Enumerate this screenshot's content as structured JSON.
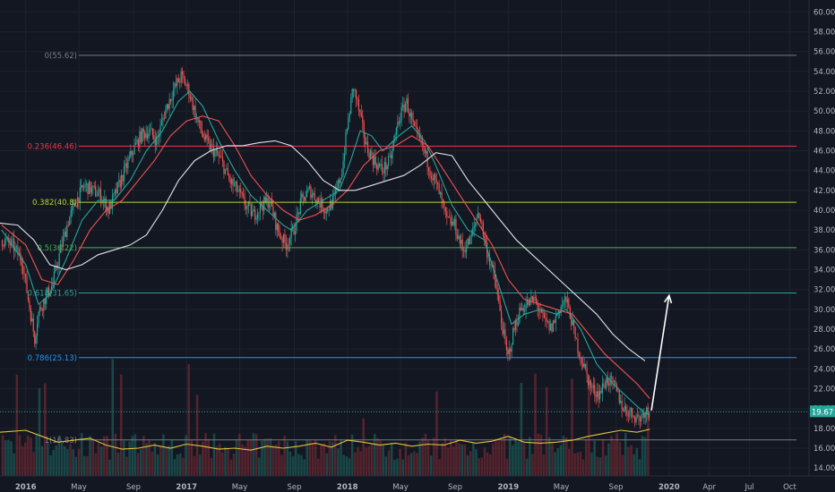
{
  "chart_data": {
    "type": "line",
    "title": "",
    "xlabel": "",
    "ylabel": "",
    "ylim": [
      13.2,
      61.2
    ],
    "xlim": [
      2015.84,
      2020.87
    ],
    "x_ticks": [
      {
        "label": "2016",
        "t": 2016.0,
        "major": true
      },
      {
        "label": "May",
        "t": 2016.33,
        "major": false
      },
      {
        "label": "Sep",
        "t": 2016.67,
        "major": false
      },
      {
        "label": "2017",
        "t": 2017.0,
        "major": true
      },
      {
        "label": "May",
        "t": 2017.33,
        "major": false
      },
      {
        "label": "Sep",
        "t": 2017.67,
        "major": false
      },
      {
        "label": "2018",
        "t": 2018.0,
        "major": true
      },
      {
        "label": "May",
        "t": 2018.33,
        "major": false
      },
      {
        "label": "Sep",
        "t": 2018.67,
        "major": false
      },
      {
        "label": "2019",
        "t": 2019.0,
        "major": true
      },
      {
        "label": "May",
        "t": 2019.33,
        "major": false
      },
      {
        "label": "Sep",
        "t": 2019.67,
        "major": false
      },
      {
        "label": "2020",
        "t": 2020.0,
        "major": true
      },
      {
        "label": "Apr",
        "t": 2020.25,
        "major": false
      },
      {
        "label": "Jul",
        "t": 2020.5,
        "major": false
      },
      {
        "label": "Oct",
        "t": 2020.75,
        "major": false
      }
    ],
    "y_ticks": [
      "14.00",
      "16.00",
      "18.00",
      "20.00",
      "22.00",
      "24.00",
      "26.00",
      "28.00",
      "30.00",
      "32.00",
      "34.00",
      "36.00",
      "38.00",
      "40.00",
      "42.00",
      "44.00",
      "46.00",
      "48.00",
      "50.00",
      "52.00",
      "54.00",
      "56.00",
      "58.00",
      "60.00"
    ],
    "current_price": "19.67",
    "fib_levels": [
      {
        "label": "0(55.62)",
        "value": 55.62,
        "color": "#787b86"
      },
      {
        "label": "0.236(46.46)",
        "value": 46.46,
        "color": "#f23645"
      },
      {
        "label": "0.382(40.8)",
        "value": 40.8,
        "color": "#b5d334"
      },
      {
        "label": "0.5(36.22)",
        "value": 36.22,
        "color": "#4caf50"
      },
      {
        "label": "0.618(31.65)",
        "value": 31.65,
        "color": "#26a69a"
      },
      {
        "label": "0.786(25.13)",
        "value": 25.13,
        "color": "#2196f3"
      },
      {
        "label": "1(16.83)",
        "value": 16.83,
        "color": "#787b86"
      }
    ],
    "price_path": [
      [
        2015.85,
        37.0
      ],
      [
        2015.92,
        36.5
      ],
      [
        2015.98,
        35.0
      ],
      [
        2016.03,
        30.0
      ],
      [
        2016.06,
        27.0
      ],
      [
        2016.08,
        29.5
      ],
      [
        2016.12,
        31.0
      ],
      [
        2016.17,
        32.5
      ],
      [
        2016.22,
        36.0
      ],
      [
        2016.27,
        39.0
      ],
      [
        2016.32,
        41.0
      ],
      [
        2016.37,
        42.5
      ],
      [
        2016.42,
        42.0
      ],
      [
        2016.47,
        41.5
      ],
      [
        2016.52,
        40.0
      ],
      [
        2016.57,
        42.0
      ],
      [
        2016.62,
        44.0
      ],
      [
        2016.67,
        46.0
      ],
      [
        2016.72,
        47.5
      ],
      [
        2016.77,
        48.0
      ],
      [
        2016.82,
        47.0
      ],
      [
        2016.87,
        50.0
      ],
      [
        2016.92,
        52.0
      ],
      [
        2016.97,
        53.5
      ],
      [
        2017.02,
        52.0
      ],
      [
        2017.07,
        49.0
      ],
      [
        2017.12,
        47.0
      ],
      [
        2017.17,
        46.0
      ],
      [
        2017.22,
        45.0
      ],
      [
        2017.27,
        43.0
      ],
      [
        2017.32,
        42.0
      ],
      [
        2017.37,
        40.5
      ],
      [
        2017.42,
        39.5
      ],
      [
        2017.47,
        40.5
      ],
      [
        2017.52,
        41.0
      ],
      [
        2017.57,
        38.0
      ],
      [
        2017.62,
        36.5
      ],
      [
        2017.67,
        38.0
      ],
      [
        2017.72,
        41.0
      ],
      [
        2017.77,
        42.0
      ],
      [
        2017.82,
        41.0
      ],
      [
        2017.87,
        40.0
      ],
      [
        2017.92,
        41.0
      ],
      [
        2017.97,
        44.0
      ],
      [
        2018.0,
        48.0
      ],
      [
        2018.04,
        52.5
      ],
      [
        2018.07,
        50.5
      ],
      [
        2018.12,
        46.5
      ],
      [
        2018.17,
        45.0
      ],
      [
        2018.22,
        44.0
      ],
      [
        2018.27,
        45.0
      ],
      [
        2018.32,
        49.0
      ],
      [
        2018.37,
        51.0
      ],
      [
        2018.42,
        48.0
      ],
      [
        2018.47,
        46.5
      ],
      [
        2018.52,
        44.0
      ],
      [
        2018.57,
        42.0
      ],
      [
        2018.62,
        39.0
      ],
      [
        2018.67,
        38.5
      ],
      [
        2018.72,
        36.0
      ],
      [
        2018.77,
        37.0
      ],
      [
        2018.82,
        40.0
      ],
      [
        2018.87,
        36.0
      ],
      [
        2018.92,
        33.0
      ],
      [
        2018.95,
        30.0
      ],
      [
        2018.98,
        27.0
      ],
      [
        2019.0,
        25.0
      ],
      [
        2019.04,
        28.0
      ],
      [
        2019.08,
        30.0
      ],
      [
        2019.12,
        30.5
      ],
      [
        2019.17,
        31.0
      ],
      [
        2019.22,
        29.0
      ],
      [
        2019.27,
        28.0
      ],
      [
        2019.32,
        30.0
      ],
      [
        2019.36,
        31.0
      ],
      [
        2019.39,
        29.5
      ],
      [
        2019.42,
        27.0
      ],
      [
        2019.47,
        24.5
      ],
      [
        2019.52,
        22.0
      ],
      [
        2019.57,
        21.5
      ],
      [
        2019.62,
        23.0
      ],
      [
        2019.67,
        22.0
      ],
      [
        2019.72,
        20.0
      ],
      [
        2019.77,
        19.5
      ],
      [
        2019.82,
        19.0
      ],
      [
        2019.85,
        19.8
      ],
      [
        2019.88,
        19.67
      ]
    ],
    "series": [
      {
        "name": "",
        "color": "#26a69a",
        "values": [
          [
            2015.85,
            38.0
          ],
          [
            2016.0,
            34.5
          ],
          [
            2016.08,
            30.5
          ],
          [
            2016.15,
            31.5
          ],
          [
            2016.25,
            35.0
          ],
          [
            2016.35,
            39.0
          ],
          [
            2016.45,
            41.0
          ],
          [
            2016.55,
            41.0
          ],
          [
            2016.65,
            43.0
          ],
          [
            2016.75,
            46.0
          ],
          [
            2016.85,
            48.0
          ],
          [
            2016.95,
            51.0
          ],
          [
            2017.02,
            52.0
          ],
          [
            2017.1,
            50.5
          ],
          [
            2017.2,
            47.0
          ],
          [
            2017.3,
            44.0
          ],
          [
            2017.4,
            41.5
          ],
          [
            2017.5,
            40.0
          ],
          [
            2017.6,
            38.5
          ],
          [
            2017.65,
            38.0
          ],
          [
            2017.75,
            40.0
          ],
          [
            2017.85,
            41.0
          ],
          [
            2017.95,
            42.0
          ],
          [
            2018.02,
            45.0
          ],
          [
            2018.08,
            48.0
          ],
          [
            2018.15,
            47.5
          ],
          [
            2018.22,
            46.0
          ],
          [
            2018.32,
            47.5
          ],
          [
            2018.4,
            48.5
          ],
          [
            2018.48,
            47.0
          ],
          [
            2018.55,
            44.5
          ],
          [
            2018.65,
            40.5
          ],
          [
            2018.75,
            38.0
          ],
          [
            2018.85,
            37.0
          ],
          [
            2018.95,
            32.0
          ],
          [
            2019.02,
            28.5
          ],
          [
            2019.1,
            29.5
          ],
          [
            2019.2,
            30.0
          ],
          [
            2019.3,
            29.5
          ],
          [
            2019.36,
            30.0
          ],
          [
            2019.45,
            28.0
          ],
          [
            2019.55,
            24.5
          ],
          [
            2019.65,
            22.5
          ],
          [
            2019.75,
            21.0
          ],
          [
            2019.85,
            19.5
          ],
          [
            2019.88,
            19.4
          ]
        ]
      },
      {
        "name": "",
        "color": "#ef5350",
        "values": [
          [
            2015.85,
            38.5
          ],
          [
            2016.0,
            36.5
          ],
          [
            2016.1,
            33.0
          ],
          [
            2016.2,
            32.5
          ],
          [
            2016.3,
            35.0
          ],
          [
            2016.4,
            38.0
          ],
          [
            2016.5,
            40.0
          ],
          [
            2016.6,
            41.0
          ],
          [
            2016.7,
            43.0
          ],
          [
            2016.8,
            45.0
          ],
          [
            2016.9,
            47.5
          ],
          [
            2017.0,
            49.0
          ],
          [
            2017.1,
            49.5
          ],
          [
            2017.2,
            49.0
          ],
          [
            2017.3,
            46.5
          ],
          [
            2017.4,
            43.5
          ],
          [
            2017.5,
            41.5
          ],
          [
            2017.6,
            40.0
          ],
          [
            2017.7,
            39.0
          ],
          [
            2017.8,
            39.5
          ],
          [
            2017.9,
            40.5
          ],
          [
            2018.0,
            42.0
          ],
          [
            2018.1,
            44.5
          ],
          [
            2018.2,
            46.0
          ],
          [
            2018.3,
            46.5
          ],
          [
            2018.4,
            47.5
          ],
          [
            2018.5,
            46.5
          ],
          [
            2018.6,
            44.0
          ],
          [
            2018.7,
            41.5
          ],
          [
            2018.8,
            39.0
          ],
          [
            2018.9,
            36.5
          ],
          [
            2019.0,
            33.0
          ],
          [
            2019.1,
            31.0
          ],
          [
            2019.2,
            30.5
          ],
          [
            2019.3,
            30.0
          ],
          [
            2019.4,
            29.5
          ],
          [
            2019.5,
            27.5
          ],
          [
            2019.6,
            25.5
          ],
          [
            2019.7,
            24.0
          ],
          [
            2019.8,
            22.5
          ],
          [
            2019.88,
            21.0
          ]
        ]
      },
      {
        "name": "",
        "color": "#e0e3eb",
        "values": [
          [
            2015.84,
            38.7
          ],
          [
            2015.95,
            38.5
          ],
          [
            2016.05,
            37.0
          ],
          [
            2016.15,
            34.5
          ],
          [
            2016.25,
            34.0
          ],
          [
            2016.35,
            34.5
          ],
          [
            2016.45,
            35.5
          ],
          [
            2016.55,
            36.0
          ],
          [
            2016.65,
            36.5
          ],
          [
            2016.75,
            37.5
          ],
          [
            2016.85,
            40.0
          ],
          [
            2016.95,
            43.0
          ],
          [
            2017.05,
            45.0
          ],
          [
            2017.15,
            46.0
          ],
          [
            2017.25,
            46.5
          ],
          [
            2017.35,
            46.5
          ],
          [
            2017.45,
            46.8
          ],
          [
            2017.55,
            47.0
          ],
          [
            2017.65,
            46.5
          ],
          [
            2017.75,
            45.0
          ],
          [
            2017.85,
            43.0
          ],
          [
            2017.95,
            42.0
          ],
          [
            2018.05,
            42.0
          ],
          [
            2018.15,
            42.5
          ],
          [
            2018.25,
            43.0
          ],
          [
            2018.35,
            43.5
          ],
          [
            2018.45,
            44.5
          ],
          [
            2018.55,
            45.8
          ],
          [
            2018.65,
            45.5
          ],
          [
            2018.75,
            43.0
          ],
          [
            2018.85,
            41.0
          ],
          [
            2018.95,
            39.0
          ],
          [
            2019.05,
            37.0
          ],
          [
            2019.15,
            35.5
          ],
          [
            2019.25,
            34.0
          ],
          [
            2019.35,
            32.5
          ],
          [
            2019.45,
            31.0
          ],
          [
            2019.55,
            29.5
          ],
          [
            2019.65,
            27.5
          ],
          [
            2019.75,
            26.0
          ],
          [
            2019.85,
            24.8
          ]
        ]
      },
      {
        "name": "",
        "color": "#e6c23a",
        "values": [
          [
            2015.84,
            17.6
          ],
          [
            2016.0,
            17.8
          ],
          [
            2016.1,
            17.2
          ],
          [
            2016.2,
            16.6
          ],
          [
            2016.3,
            16.8
          ],
          [
            2016.4,
            17.0
          ],
          [
            2016.5,
            16.3
          ],
          [
            2016.6,
            15.9
          ],
          [
            2016.7,
            16.0
          ],
          [
            2016.8,
            16.3
          ],
          [
            2016.9,
            16.0
          ],
          [
            2017.0,
            16.4
          ],
          [
            2017.1,
            16.2
          ],
          [
            2017.2,
            15.9
          ],
          [
            2017.3,
            16.0
          ],
          [
            2017.4,
            15.8
          ],
          [
            2017.5,
            16.2
          ],
          [
            2017.6,
            16.0
          ],
          [
            2017.7,
            16.2
          ],
          [
            2017.8,
            16.5
          ],
          [
            2017.9,
            16.1
          ],
          [
            2018.0,
            16.8
          ],
          [
            2018.1,
            16.6
          ],
          [
            2018.2,
            16.3
          ],
          [
            2018.3,
            16.5
          ],
          [
            2018.4,
            16.2
          ],
          [
            2018.5,
            16.4
          ],
          [
            2018.6,
            16.3
          ],
          [
            2018.7,
            16.8
          ],
          [
            2018.8,
            16.5
          ],
          [
            2018.9,
            16.7
          ],
          [
            2019.0,
            17.2
          ],
          [
            2019.1,
            16.6
          ],
          [
            2019.2,
            16.5
          ],
          [
            2019.3,
            16.6
          ],
          [
            2019.4,
            16.8
          ],
          [
            2019.5,
            17.2
          ],
          [
            2019.6,
            17.5
          ],
          [
            2019.7,
            17.8
          ],
          [
            2019.8,
            17.6
          ],
          [
            2019.88,
            17.9
          ]
        ]
      }
    ],
    "annotation_arrow": {
      "from": [
        2019.89,
        19.8
      ],
      "to": [
        2020.0,
        31.4
      ],
      "color": "#ffffff"
    }
  }
}
